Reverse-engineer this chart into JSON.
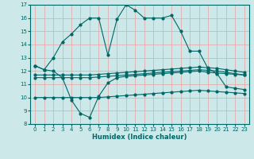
{
  "xlabel": "Humidex (Indice chaleur)",
  "bg_color": "#cce8e8",
  "line_color": "#006666",
  "xlim": [
    -0.5,
    23.5
  ],
  "ylim": [
    8,
    17
  ],
  "xticks": [
    0,
    1,
    2,
    3,
    4,
    5,
    6,
    7,
    8,
    9,
    10,
    11,
    12,
    13,
    14,
    15,
    16,
    17,
    18,
    19,
    20,
    21,
    22,
    23
  ],
  "yticks": [
    8,
    9,
    10,
    11,
    12,
    13,
    14,
    15,
    16,
    17
  ],
  "curve_top_x": [
    0,
    1,
    2,
    3,
    4,
    5,
    6,
    7,
    8,
    9,
    10,
    11,
    12,
    13,
    14,
    15,
    16,
    17,
    18,
    19,
    20,
    21,
    22,
    23
  ],
  "curve_top_y": [
    12.4,
    12.1,
    13.0,
    14.2,
    14.8,
    15.5,
    16.0,
    16.0,
    13.2,
    15.9,
    17.0,
    16.6,
    16.0,
    16.0,
    16.0,
    16.2,
    15.0,
    13.5,
    13.5,
    12.2,
    11.8,
    10.8,
    10.7,
    10.6
  ],
  "curve_dip_x": [
    0,
    1,
    2,
    3,
    4,
    5,
    6,
    7,
    8,
    9,
    10,
    11,
    12,
    13,
    14,
    15,
    16,
    17,
    18,
    19,
    20,
    21,
    22,
    23
  ],
  "curve_dip_y": [
    12.4,
    12.1,
    12.0,
    11.5,
    9.8,
    8.8,
    8.5,
    10.1,
    11.1,
    11.5,
    11.6,
    11.65,
    11.7,
    11.75,
    11.8,
    11.85,
    11.9,
    11.95,
    12.0,
    11.9,
    11.85,
    11.8,
    11.75,
    11.7
  ],
  "curve_flat1_x": [
    0,
    1,
    2,
    3,
    4,
    5,
    6,
    7,
    8,
    9,
    10,
    11,
    12,
    13,
    14,
    15,
    16,
    17,
    18,
    19,
    20,
    21,
    22,
    23
  ],
  "curve_flat1_y": [
    11.5,
    11.5,
    11.5,
    11.5,
    11.5,
    11.5,
    11.5,
    11.55,
    11.6,
    11.65,
    11.7,
    11.75,
    11.8,
    11.85,
    11.9,
    11.95,
    12.0,
    12.05,
    12.1,
    12.05,
    12.0,
    11.9,
    11.8,
    11.7
  ],
  "curve_flat2_x": [
    0,
    1,
    2,
    3,
    4,
    5,
    6,
    7,
    8,
    9,
    10,
    11,
    12,
    13,
    14,
    15,
    16,
    17,
    18,
    19,
    20,
    21,
    22,
    23
  ],
  "curve_flat2_y": [
    11.7,
    11.7,
    11.7,
    11.7,
    11.7,
    11.7,
    11.7,
    11.75,
    11.8,
    11.85,
    11.9,
    11.95,
    12.0,
    12.05,
    12.1,
    12.15,
    12.2,
    12.25,
    12.3,
    12.25,
    12.2,
    12.1,
    12.0,
    11.9
  ],
  "curve_bot_x": [
    0,
    1,
    2,
    3,
    4,
    5,
    6,
    7,
    8,
    9,
    10,
    11,
    12,
    13,
    14,
    15,
    16,
    17,
    18,
    19,
    20,
    21,
    22,
    23
  ],
  "curve_bot_y": [
    10.0,
    10.0,
    10.0,
    10.0,
    10.0,
    10.0,
    10.0,
    10.0,
    10.05,
    10.1,
    10.15,
    10.2,
    10.25,
    10.3,
    10.35,
    10.4,
    10.45,
    10.5,
    10.55,
    10.5,
    10.45,
    10.4,
    10.35,
    10.3
  ]
}
